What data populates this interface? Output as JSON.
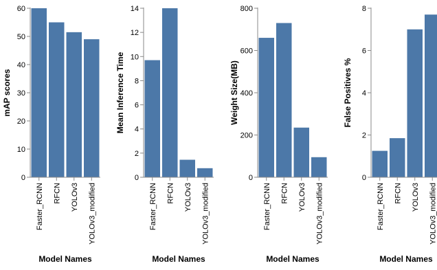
{
  "chart_data": [
    {
      "type": "bar",
      "categories": [
        "Faster_RCNN",
        "RFCN",
        "YOLOv3",
        "YOLOv3_modified"
      ],
      "values": [
        60,
        55,
        51.5,
        49
      ],
      "xlabel": "Model Names",
      "ylabel": "mAP scores",
      "ylim": [
        0,
        60
      ],
      "yticks": [
        0,
        10,
        20,
        30,
        40,
        50,
        60
      ],
      "grid": false,
      "bar_color": "#4c78a8"
    },
    {
      "type": "bar",
      "categories": [
        "Faster_RCNN",
        "RFCN",
        "YOLOv3",
        "YOLOv3_modified"
      ],
      "values": [
        9.7,
        14,
        1.45,
        0.75
      ],
      "xlabel": "Model Names",
      "ylabel": "Mean Inference Time",
      "ylim": [
        0,
        14
      ],
      "yticks": [
        0,
        2,
        4,
        6,
        8,
        10,
        12,
        14
      ],
      "grid": false,
      "bar_color": "#4c78a8"
    },
    {
      "type": "bar",
      "categories": [
        "Faster_RCNN",
        "RFCN",
        "YOLOv3",
        "YOLOv3_modified"
      ],
      "values": [
        660,
        730,
        235,
        95
      ],
      "xlabel": "Model Names",
      "ylabel": "Weight Size(MB)",
      "ylim": [
        0,
        800
      ],
      "yticks": [
        0,
        200,
        400,
        600,
        800
      ],
      "grid": false,
      "bar_color": "#4c78a8"
    },
    {
      "type": "bar",
      "categories": [
        "Faster_RCNN",
        "RFCN",
        "YOLOv3",
        "YOLOv3_modified"
      ],
      "values": [
        1.25,
        1.85,
        7.0,
        7.7
      ],
      "xlabel": "Model Names",
      "ylabel": "False Positives %",
      "ylim": [
        0,
        8
      ],
      "yticks": [
        0,
        2,
        4,
        6,
        8
      ],
      "grid": false,
      "bar_color": "#4c78a8"
    }
  ]
}
